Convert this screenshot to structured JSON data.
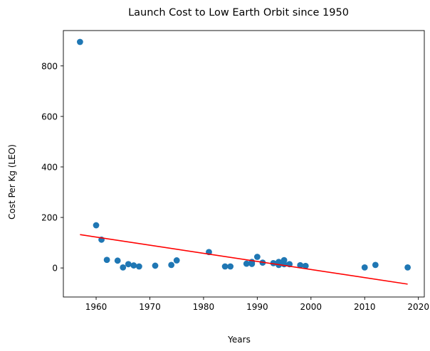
{
  "chart_data": {
    "type": "scatter",
    "title": "Launch Cost to Low Earth Orbit since 1950",
    "xlabel": "Years",
    "ylabel": "Cost Per Kg (LEO)",
    "xlim": [
      1953.9,
      2021.1
    ],
    "ylim": [
      -115,
      940
    ],
    "xticks": [
      1960,
      1970,
      1980,
      1990,
      2000,
      2010,
      2020
    ],
    "yticks": [
      0,
      200,
      400,
      600,
      800
    ],
    "grid": false,
    "legend": "none",
    "colors": {
      "points": "#1f77b4",
      "trend": "#ff0000"
    },
    "series": [
      {
        "kind": "scatter",
        "points": [
          [
            1957,
            895
          ],
          [
            1960,
            169
          ],
          [
            1961,
            112
          ],
          [
            1962,
            32
          ],
          [
            1964,
            29
          ],
          [
            1965,
            2
          ],
          [
            1966,
            15
          ],
          [
            1967,
            10
          ],
          [
            1968,
            6
          ],
          [
            1971,
            9
          ],
          [
            1974,
            12
          ],
          [
            1975,
            30
          ],
          [
            1981,
            63
          ],
          [
            1984,
            6
          ],
          [
            1985,
            6
          ],
          [
            1988,
            17
          ],
          [
            1989,
            24
          ],
          [
            1989,
            16
          ],
          [
            1990,
            44
          ],
          [
            1991,
            21
          ],
          [
            1993,
            19
          ],
          [
            1994,
            24
          ],
          [
            1994,
            12
          ],
          [
            1995,
            31
          ],
          [
            1995,
            15
          ],
          [
            1996,
            15
          ],
          [
            1998,
            11
          ],
          [
            1999,
            8
          ],
          [
            2010,
            2
          ],
          [
            2012,
            12
          ],
          [
            2018,
            2
          ]
        ]
      },
      {
        "kind": "line",
        "points": [
          [
            1957,
            132
          ],
          [
            2018,
            -64
          ]
        ]
      }
    ]
  }
}
